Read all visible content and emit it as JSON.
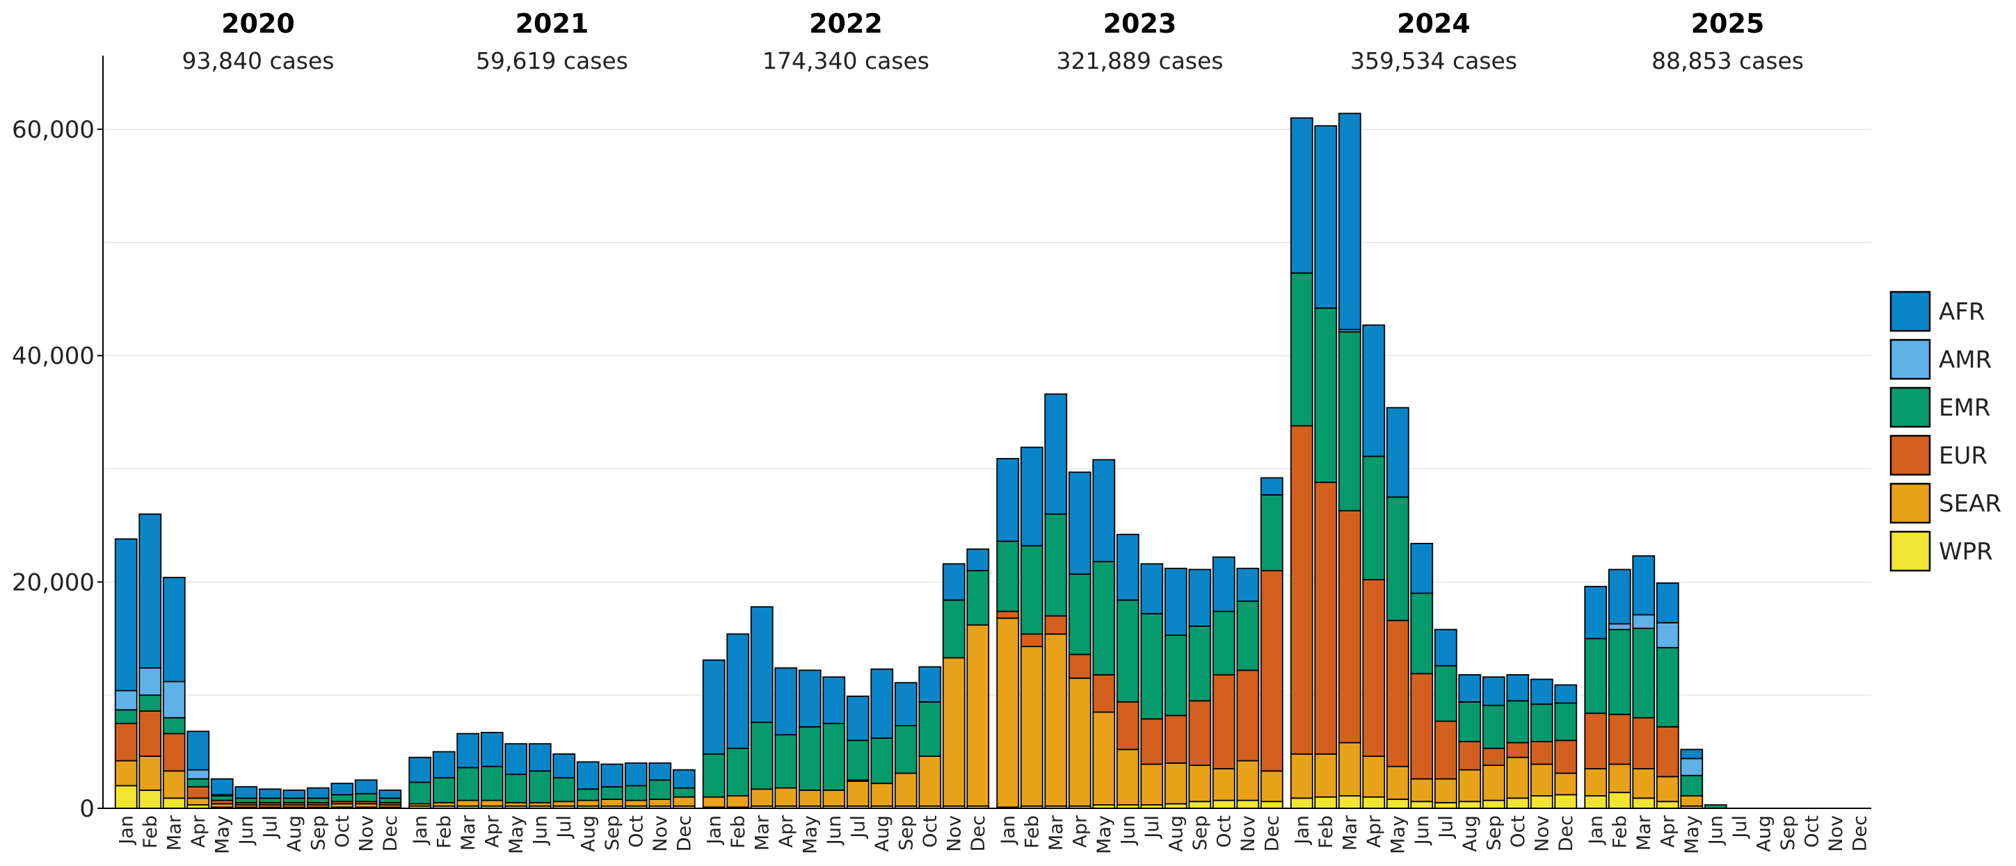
{
  "chart_data": {
    "type": "bar",
    "stacked": true,
    "title": "",
    "xlabel": "",
    "ylabel": "",
    "ylim": [
      0,
      66000
    ],
    "yticks": [
      0,
      20000,
      40000,
      60000
    ],
    "ytick_labels": [
      "0",
      "20,000",
      "40,000",
      "60,000"
    ],
    "grid": true,
    "legend_position": "right",
    "months": [
      "Jan",
      "Feb",
      "Mar",
      "Apr",
      "May",
      "Jun",
      "Jul",
      "Aug",
      "Sep",
      "Oct",
      "Nov",
      "Dec"
    ],
    "years": [
      {
        "label": "2020",
        "cases_label": "93,840 cases"
      },
      {
        "label": "2021",
        "cases_label": "59,619 cases"
      },
      {
        "label": "2022",
        "cases_label": "174,340 cases"
      },
      {
        "label": "2023",
        "cases_label": "321,889 cases"
      },
      {
        "label": "2024",
        "cases_label": "359,534 cases"
      },
      {
        "label": "2025",
        "cases_label": "88,853 cases"
      }
    ],
    "series": [
      {
        "name": "WPR",
        "color": "#f0e532",
        "values": [
          [
            2000,
            1600,
            900,
            300,
            100,
            100,
            100,
            100,
            100,
            100,
            100,
            100
          ],
          [
            200,
            200,
            200,
            200,
            200,
            200,
            200,
            200,
            200,
            200,
            200,
            200
          ],
          [
            100,
            100,
            200,
            200,
            200,
            200,
            200,
            200,
            200,
            200,
            200,
            200
          ],
          [
            100,
            200,
            200,
            200,
            300,
            300,
            300,
            400,
            600,
            700,
            700,
            600
          ],
          [
            900,
            1000,
            1100,
            1000,
            800,
            600,
            500,
            600,
            700,
            900,
            1100,
            1200
          ],
          [
            1100,
            1400,
            900,
            600,
            200,
            0,
            0,
            0,
            0,
            0,
            0,
            0
          ]
        ]
      },
      {
        "name": "SEAR",
        "color": "#e8a21a",
        "values": [
          [
            2200,
            3000,
            2400,
            600,
            300,
            200,
            200,
            200,
            200,
            300,
            300,
            200
          ],
          [
            200,
            300,
            500,
            500,
            300,
            300,
            400,
            500,
            600,
            500,
            600,
            800
          ],
          [
            900,
            1000,
            1500,
            1600,
            1400,
            1400,
            2200,
            2000,
            2900,
            4400,
            13100,
            16000
          ],
          [
            16700,
            14100,
            15200,
            11300,
            8200,
            4900,
            3600,
            3600,
            3200,
            2800,
            3500,
            2700
          ],
          [
            3900,
            3800,
            4700,
            3600,
            2900,
            2000,
            2100,
            2800,
            3100,
            3600,
            2800,
            1900
          ],
          [
            2400,
            2500,
            2600,
            2200,
            900,
            0,
            0,
            0,
            0,
            0,
            0,
            0
          ]
        ]
      },
      {
        "name": "EUR",
        "color": "#d3601f",
        "values": [
          [
            3300,
            4000,
            3300,
            1000,
            300,
            200,
            200,
            200,
            200,
            200,
            200,
            200
          ],
          [
            0,
            0,
            0,
            0,
            0,
            0,
            0,
            0,
            0,
            0,
            0,
            0
          ],
          [
            0,
            0,
            0,
            0,
            0,
            0,
            100,
            0,
            0,
            0,
            0,
            0
          ],
          [
            600,
            1100,
            1600,
            2100,
            3300,
            4200,
            4000,
            4200,
            5700,
            8300,
            8000,
            17700
          ],
          [
            29000,
            24000,
            20500,
            15600,
            12900,
            9300,
            5100,
            2500,
            1500,
            1300,
            2000,
            2900
          ],
          [
            4900,
            4400,
            4500,
            4400,
            0,
            0,
            0,
            0,
            0,
            0,
            0,
            0
          ]
        ]
      },
      {
        "name": "EMR",
        "color": "#069a6c",
        "values": [
          [
            1200,
            1400,
            1400,
            700,
            400,
            400,
            400,
            400,
            400,
            600,
            700,
            400
          ],
          [
            1900,
            2200,
            2900,
            3000,
            2500,
            2800,
            2100,
            1000,
            1100,
            1300,
            1700,
            800
          ],
          [
            3800,
            4200,
            5900,
            4700,
            5600,
            5900,
            3500,
            4000,
            4200,
            4800,
            5100,
            4800
          ],
          [
            6200,
            7800,
            9000,
            7100,
            10000,
            9000,
            9300,
            7100,
            6600,
            5600,
            6100,
            6700
          ],
          [
            13500,
            15400,
            15800,
            10900,
            10900,
            7100,
            4900,
            3500,
            3800,
            3700,
            3300,
            3300
          ],
          [
            6600,
            7500,
            7900,
            7000,
            1800,
            300,
            0,
            0,
            0,
            0,
            0,
            0
          ]
        ]
      },
      {
        "name": "AMR",
        "color": "#5fb1e8",
        "values": [
          [
            1700,
            2400,
            3200,
            800,
            100,
            0,
            0,
            0,
            0,
            0,
            0,
            0
          ],
          [
            0,
            0,
            0,
            0,
            0,
            0,
            0,
            0,
            0,
            0,
            0,
            0
          ],
          [
            0,
            0,
            0,
            0,
            0,
            0,
            0,
            0,
            0,
            0,
            0,
            0
          ],
          [
            0,
            0,
            0,
            0,
            0,
            0,
            0,
            0,
            0,
            0,
            0,
            0
          ],
          [
            0,
            0,
            200,
            0,
            0,
            0,
            0,
            0,
            0,
            0,
            0,
            0
          ],
          [
            0,
            500,
            1200,
            2200,
            1500,
            0,
            0,
            0,
            0,
            0,
            0,
            0
          ]
        ]
      },
      {
        "name": "AFR",
        "color": "#0a85c7",
        "values": [
          [
            13400,
            13600,
            9200,
            3400,
            1400,
            1000,
            800,
            700,
            900,
            1000,
            1200,
            700
          ],
          [
            2200,
            2300,
            3000,
            3000,
            2700,
            2400,
            2100,
            2400,
            2000,
            2000,
            1500,
            1600
          ],
          [
            8300,
            10100,
            10200,
            5900,
            5000,
            4100,
            3900,
            6100,
            3800,
            3100,
            3200,
            1900
          ],
          [
            7300,
            8700,
            10600,
            9000,
            9000,
            5800,
            4400,
            5900,
            5000,
            4800,
            2900,
            1500
          ],
          [
            13700,
            16100,
            19100,
            11600,
            7900,
            4400,
            3200,
            2400,
            2500,
            2300,
            2200,
            1600
          ],
          [
            4600,
            4800,
            5200,
            3500,
            800,
            0,
            0,
            0,
            0,
            0,
            0,
            0
          ]
        ]
      }
    ],
    "legend_order": [
      "AFR",
      "AMR",
      "EMR",
      "EUR",
      "SEAR",
      "WPR"
    ]
  }
}
